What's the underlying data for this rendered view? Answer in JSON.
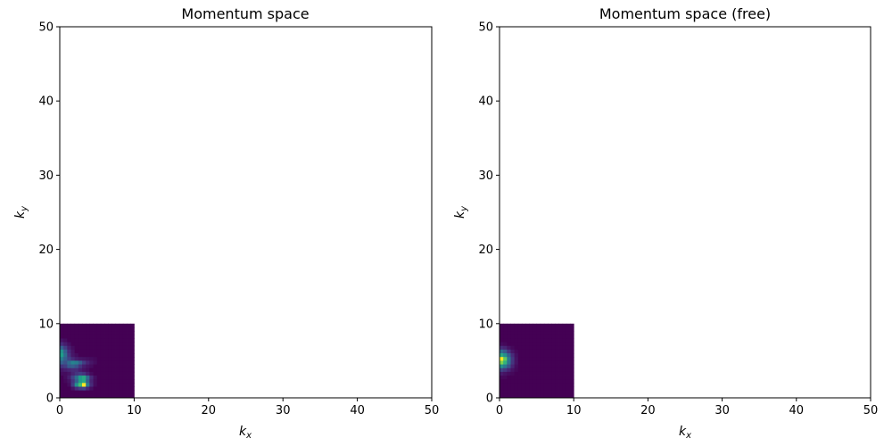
{
  "chart_data": [
    {
      "type": "heatmap",
      "title": "Momentum space",
      "xlabel": "k",
      "xlabel_sub": "x",
      "ylabel": "k",
      "ylabel_sub": "y",
      "xlim": [
        0,
        50
      ],
      "ylim": [
        0,
        50
      ],
      "xticks": [
        0,
        10,
        20,
        30,
        40,
        50
      ],
      "yticks": [
        0,
        10,
        20,
        30,
        40,
        50
      ],
      "extent": [
        0,
        10,
        0,
        10
      ],
      "colormap": "viridis",
      "grid": false,
      "values": [
        [
          0,
          0,
          0,
          0,
          0,
          0,
          0,
          0,
          0,
          0,
          0,
          0,
          0,
          0,
          0,
          0,
          0,
          0,
          0,
          0
        ],
        [
          0,
          0,
          0,
          0,
          0,
          0,
          0,
          0,
          0,
          0,
          0,
          0,
          0,
          0,
          0,
          0,
          0,
          0,
          0,
          0
        ],
        [
          0,
          0,
          0,
          0,
          0,
          0,
          0,
          0,
          0,
          0,
          0,
          0,
          0,
          0,
          0,
          0,
          0,
          0,
          0,
          0
        ],
        [
          0,
          0,
          0,
          0,
          0,
          0,
          0,
          0,
          0,
          0,
          0,
          0,
          0,
          0,
          0,
          0,
          0,
          0,
          0,
          0
        ],
        [
          0.05,
          0.03,
          0,
          0,
          0,
          0,
          0,
          0,
          0,
          0,
          0,
          0,
          0,
          0,
          0,
          0,
          0,
          0,
          0,
          0
        ],
        [
          0.12,
          0.08,
          0.04,
          0,
          0,
          0,
          0,
          0,
          0,
          0,
          0,
          0,
          0,
          0,
          0,
          0,
          0,
          0,
          0,
          0
        ],
        [
          0.3,
          0.18,
          0.08,
          0.03,
          0,
          0,
          0,
          0,
          0,
          0,
          0,
          0,
          0,
          0,
          0,
          0,
          0,
          0,
          0,
          0
        ],
        [
          0.5,
          0.3,
          0.12,
          0.05,
          0,
          0,
          0,
          0,
          0,
          0,
          0,
          0,
          0,
          0,
          0,
          0,
          0,
          0,
          0,
          0
        ],
        [
          0.55,
          0.35,
          0.15,
          0.06,
          0.03,
          0,
          0,
          0,
          0,
          0,
          0,
          0,
          0,
          0,
          0,
          0,
          0,
          0,
          0,
          0
        ],
        [
          0.42,
          0.3,
          0.2,
          0.12,
          0.08,
          0.06,
          0.05,
          0.04,
          0.03,
          0.02,
          0,
          0,
          0,
          0,
          0,
          0,
          0,
          0,
          0,
          0
        ],
        [
          0.3,
          0.25,
          0.35,
          0.45,
          0.42,
          0.3,
          0.18,
          0.1,
          0.06,
          0.03,
          0,
          0,
          0,
          0,
          0,
          0,
          0,
          0,
          0,
          0
        ],
        [
          0.15,
          0.18,
          0.28,
          0.3,
          0.25,
          0.15,
          0.08,
          0.05,
          0.03,
          0,
          0,
          0,
          0,
          0,
          0,
          0,
          0,
          0,
          0,
          0
        ],
        [
          0.06,
          0.08,
          0.1,
          0.12,
          0.12,
          0.08,
          0.05,
          0.03,
          0,
          0,
          0,
          0,
          0,
          0,
          0,
          0,
          0,
          0,
          0,
          0
        ],
        [
          0.03,
          0.03,
          0.05,
          0.1,
          0.15,
          0.18,
          0.15,
          0.08,
          0.03,
          0,
          0,
          0,
          0,
          0,
          0,
          0,
          0,
          0,
          0,
          0
        ],
        [
          0,
          0.03,
          0.08,
          0.2,
          0.35,
          0.55,
          0.6,
          0.35,
          0.12,
          0.04,
          0,
          0,
          0,
          0,
          0,
          0,
          0,
          0,
          0,
          0
        ],
        [
          0,
          0.02,
          0.05,
          0.15,
          0.3,
          0.55,
          0.6,
          0.3,
          0.1,
          0.03,
          0,
          0,
          0,
          0,
          0,
          0,
          0,
          0,
          0,
          0
        ],
        [
          0,
          0,
          0.03,
          0.18,
          0.5,
          0.7,
          1.0,
          0.4,
          0.12,
          0.03,
          0,
          0,
          0,
          0,
          0,
          0,
          0,
          0,
          0,
          0
        ],
        [
          0,
          0,
          0,
          0.05,
          0.12,
          0.18,
          0.2,
          0.1,
          0.04,
          0,
          0,
          0,
          0,
          0,
          0,
          0,
          0,
          0,
          0,
          0
        ],
        [
          0,
          0,
          0,
          0,
          0,
          0,
          0,
          0,
          0,
          0,
          0,
          0,
          0,
          0,
          0,
          0,
          0,
          0,
          0,
          0
        ],
        [
          0,
          0,
          0,
          0,
          0,
          0,
          0,
          0,
          0,
          0,
          0,
          0,
          0,
          0,
          0,
          0,
          0,
          0,
          0,
          0
        ]
      ]
    },
    {
      "type": "heatmap",
      "title": "Momentum space (free)",
      "xlabel": "k",
      "xlabel_sub": "x",
      "ylabel": "k",
      "ylabel_sub": "y",
      "xlim": [
        0,
        50
      ],
      "ylim": [
        0,
        50
      ],
      "xticks": [
        0,
        10,
        20,
        30,
        40,
        50
      ],
      "yticks": [
        0,
        10,
        20,
        30,
        40,
        50
      ],
      "extent": [
        0,
        10,
        0,
        10
      ],
      "colormap": "viridis",
      "grid": false,
      "values": [
        [
          0,
          0,
          0,
          0,
          0,
          0,
          0,
          0,
          0,
          0,
          0,
          0,
          0,
          0,
          0,
          0,
          0,
          0,
          0,
          0
        ],
        [
          0,
          0,
          0,
          0,
          0,
          0,
          0,
          0,
          0,
          0,
          0,
          0,
          0,
          0,
          0,
          0,
          0,
          0,
          0,
          0
        ],
        [
          0,
          0,
          0,
          0,
          0,
          0,
          0,
          0,
          0,
          0,
          0,
          0,
          0,
          0,
          0,
          0,
          0,
          0,
          0,
          0
        ],
        [
          0,
          0,
          0,
          0,
          0,
          0,
          0,
          0,
          0,
          0,
          0,
          0,
          0,
          0,
          0,
          0,
          0,
          0,
          0,
          0
        ],
        [
          0,
          0,
          0,
          0,
          0,
          0,
          0,
          0,
          0,
          0,
          0,
          0,
          0,
          0,
          0,
          0,
          0,
          0,
          0,
          0
        ],
        [
          0.03,
          0.02,
          0,
          0,
          0,
          0,
          0,
          0,
          0,
          0,
          0,
          0,
          0,
          0,
          0,
          0,
          0,
          0,
          0,
          0
        ],
        [
          0.12,
          0.1,
          0.05,
          0.02,
          0,
          0,
          0,
          0,
          0,
          0,
          0,
          0,
          0,
          0,
          0,
          0,
          0,
          0,
          0,
          0
        ],
        [
          0.35,
          0.28,
          0.15,
          0.06,
          0.02,
          0,
          0,
          0,
          0,
          0,
          0,
          0,
          0,
          0,
          0,
          0,
          0,
          0,
          0,
          0
        ],
        [
          0.6,
          0.5,
          0.3,
          0.12,
          0.04,
          0,
          0,
          0,
          0,
          0,
          0,
          0,
          0,
          0,
          0,
          0,
          0,
          0,
          0,
          0
        ],
        [
          1.0,
          0.75,
          0.4,
          0.16,
          0.05,
          0,
          0,
          0,
          0,
          0,
          0,
          0,
          0,
          0,
          0,
          0,
          0,
          0,
          0,
          0
        ],
        [
          0.8,
          0.65,
          0.38,
          0.15,
          0.05,
          0,
          0,
          0,
          0,
          0,
          0,
          0,
          0,
          0,
          0,
          0,
          0,
          0,
          0,
          0
        ],
        [
          0.5,
          0.4,
          0.25,
          0.1,
          0.03,
          0,
          0,
          0,
          0,
          0,
          0,
          0,
          0,
          0,
          0,
          0,
          0,
          0,
          0,
          0
        ],
        [
          0.2,
          0.16,
          0.1,
          0.05,
          0.02,
          0,
          0,
          0,
          0,
          0,
          0,
          0,
          0,
          0,
          0,
          0,
          0,
          0,
          0,
          0
        ],
        [
          0.07,
          0.05,
          0.03,
          0.02,
          0,
          0,
          0,
          0,
          0,
          0,
          0,
          0,
          0,
          0,
          0,
          0,
          0,
          0,
          0,
          0
        ],
        [
          0.02,
          0.02,
          0,
          0,
          0,
          0,
          0,
          0,
          0,
          0,
          0,
          0,
          0,
          0,
          0,
          0,
          0,
          0,
          0,
          0
        ],
        [
          0,
          0,
          0,
          0,
          0,
          0,
          0,
          0,
          0,
          0,
          0,
          0,
          0,
          0,
          0,
          0,
          0,
          0,
          0,
          0
        ],
        [
          0,
          0,
          0,
          0,
          0,
          0,
          0,
          0,
          0,
          0,
          0,
          0,
          0,
          0,
          0,
          0,
          0,
          0,
          0,
          0
        ],
        [
          0,
          0,
          0,
          0,
          0,
          0,
          0,
          0,
          0,
          0,
          0,
          0,
          0,
          0,
          0,
          0,
          0,
          0,
          0,
          0
        ],
        [
          0,
          0,
          0,
          0,
          0,
          0,
          0,
          0,
          0,
          0,
          0,
          0,
          0,
          0,
          0,
          0,
          0,
          0,
          0,
          0
        ],
        [
          0,
          0,
          0,
          0,
          0,
          0,
          0,
          0,
          0,
          0,
          0,
          0,
          0,
          0,
          0,
          0,
          0,
          0,
          0,
          0
        ]
      ]
    }
  ]
}
